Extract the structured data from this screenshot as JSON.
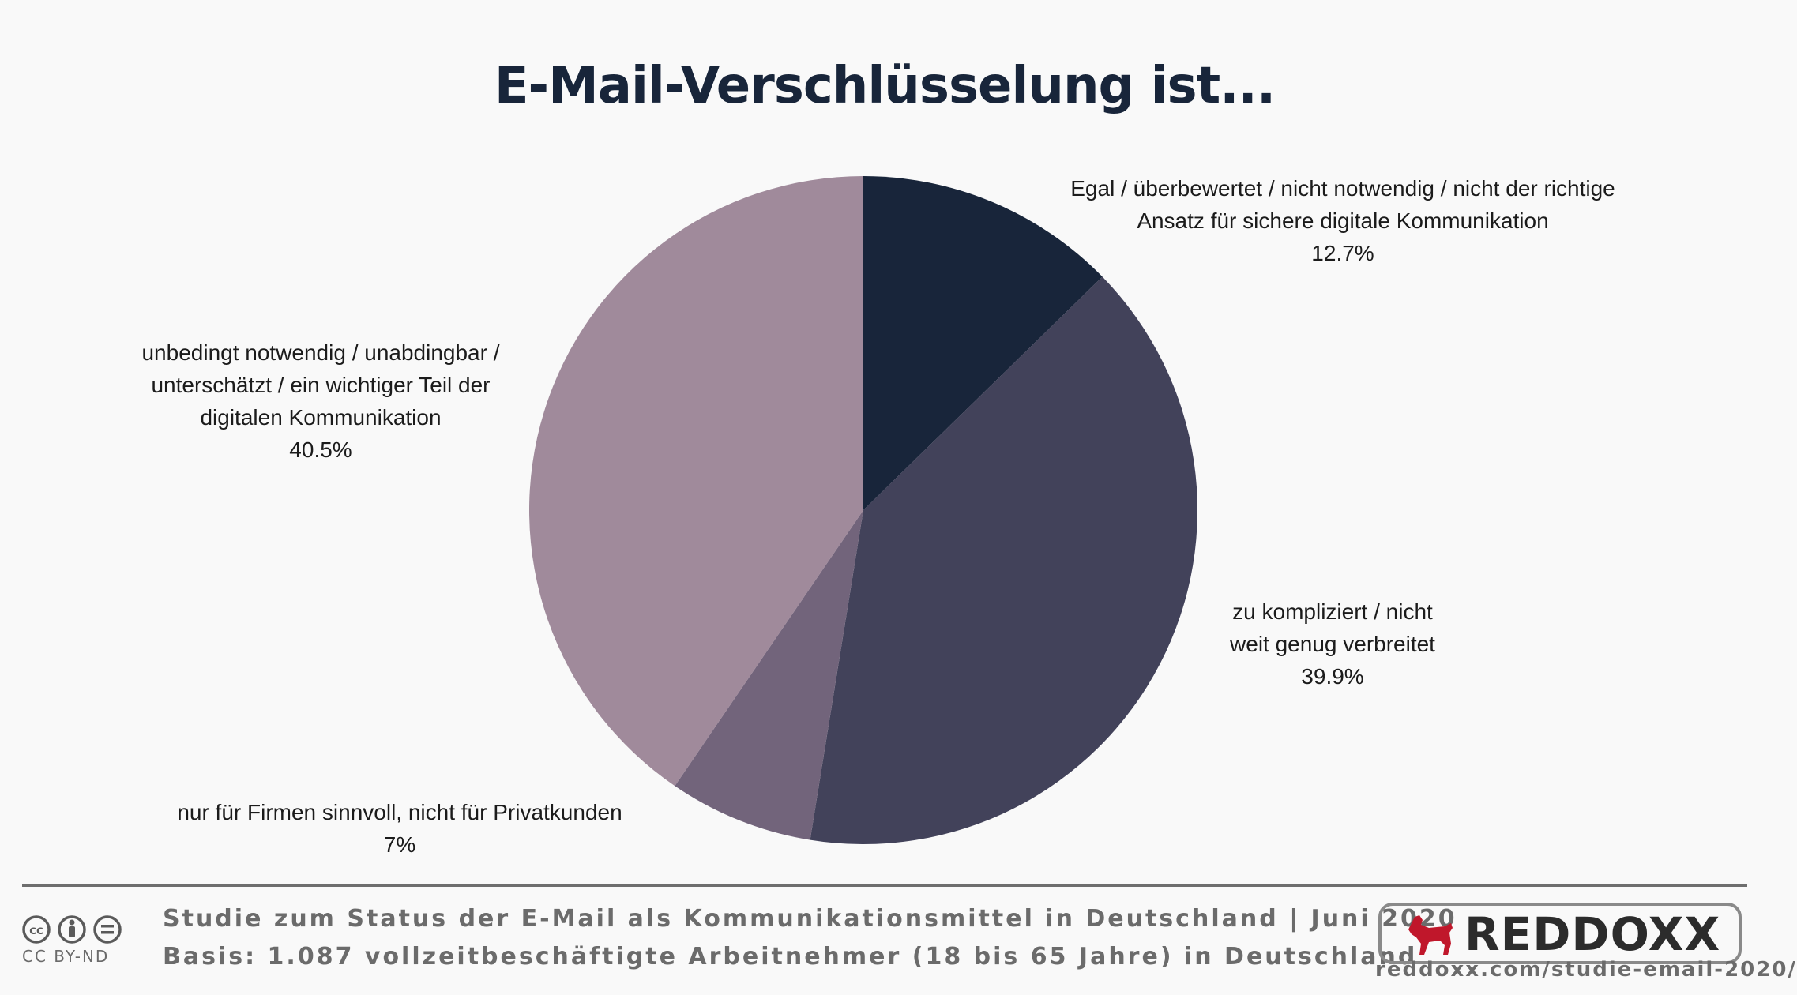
{
  "chart_data": {
    "type": "pie",
    "title": "E-Mail-Verschlüsselung ist...",
    "slices": [
      {
        "label_lines": [
          "Egal / überbewertet / nicht notwendig / nicht der richtige",
          "Ansatz für sichere digitale Kommunikation"
        ],
        "value": 12.7,
        "value_label": "12.7%",
        "color": "#18253a"
      },
      {
        "label_lines": [
          "zu kompliziert / nicht",
          "weit genug verbreitet"
        ],
        "value": 39.9,
        "value_label": "39.9%",
        "color": "#42425a"
      },
      {
        "label_lines": [
          "nur für Firmen sinnvoll, nicht für Privatkunden"
        ],
        "value": 7,
        "value_label": "7%",
        "color": "#72647b"
      },
      {
        "label_lines": [
          "unbedingt notwendig / unabdingbar /",
          "unterschätzt / ein wichtiger Teil der",
          "digitalen Kommunikation"
        ],
        "value": 40.5,
        "value_label": "40.5%",
        "color": "#a08a9b"
      }
    ]
  },
  "footer": {
    "license": "CC BY-ND",
    "line1": "Studie zum Status der E-Mail als Kommunikationsmittel in Deutschland | Juni 2020",
    "line2": "Basis: 1.087 vollzeitbeschäftigte Arbeitnehmer (18 bis 65 Jahre) in Deutschland",
    "brand": "REDDOXX",
    "url": "reddoxx.com/studie-email-2020/",
    "brand_color": "#c0172b"
  }
}
